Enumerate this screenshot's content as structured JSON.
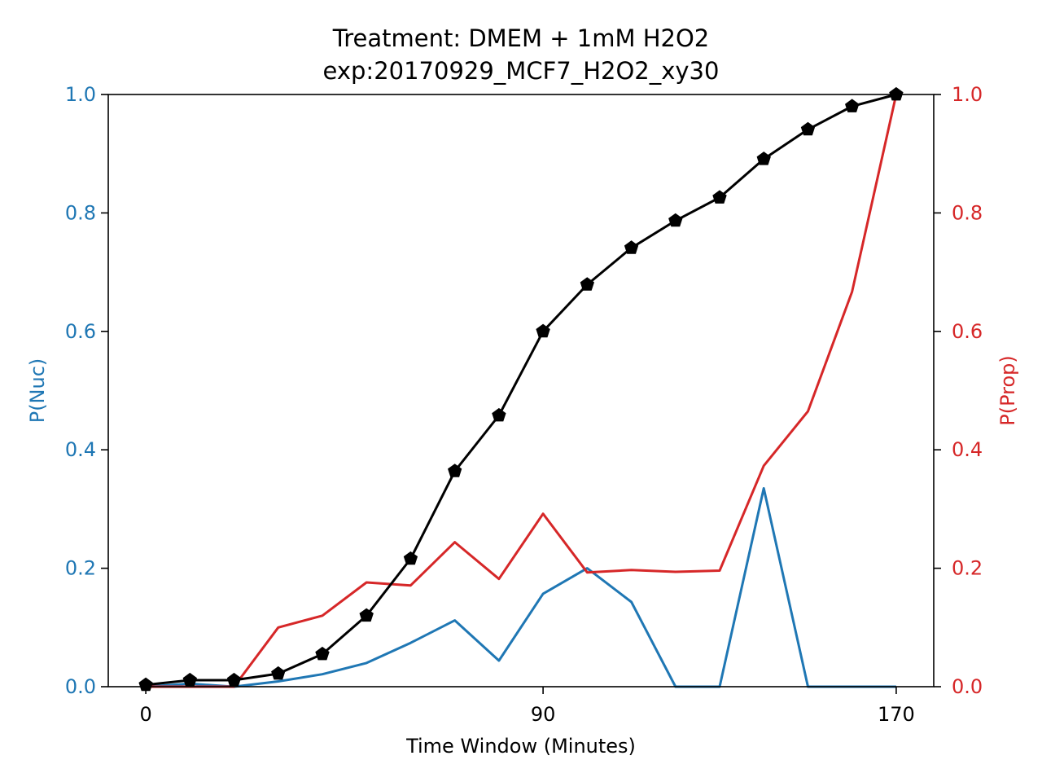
{
  "chart_data": {
    "type": "line",
    "title": "Treatment: DMEM + 1mM H2O2",
    "subtitle": "exp:20170929_MCF7_H2O2_xy30",
    "xlabel": "Time Window (Minutes)",
    "ylabel_left": "P(Nuc)",
    "ylabel_right": "P(Prop)",
    "x_ticks": [
      0,
      90,
      170
    ],
    "y_ticks_left": [
      "0.0",
      "0.2",
      "0.4",
      "0.6",
      "0.8",
      "1.0"
    ],
    "y_ticks_right": [
      "0.0",
      "0.2",
      "0.4",
      "0.6",
      "0.8",
      "1.0"
    ],
    "xlim": [
      -8.5,
      178.5
    ],
    "ylim_left": [
      0,
      1
    ],
    "ylim_right": [
      0,
      1
    ],
    "grid": false,
    "x": [
      0,
      10,
      20,
      30,
      40,
      50,
      60,
      70,
      80,
      90,
      100,
      110,
      120,
      130,
      140,
      150,
      160,
      170
    ],
    "series": [
      {
        "axis": "left",
        "color": "#1f77b4",
        "marker": "none",
        "values": [
          0.0,
          0.005,
          0.0,
          0.009,
          0.021,
          0.04,
          0.074,
          0.112,
          0.044,
          0.157,
          0.2,
          0.143,
          0.0,
          0.0,
          0.335,
          0.0,
          0.0,
          0.0
        ]
      },
      {
        "axis": "right",
        "color": "#d62728",
        "marker": "none",
        "values": [
          0.0,
          0.0,
          0.0,
          0.1,
          0.12,
          0.176,
          0.171,
          0.244,
          0.182,
          0.292,
          0.193,
          0.197,
          0.194,
          0.196,
          0.373,
          0.465,
          0.667,
          1.0
        ]
      },
      {
        "axis": "left",
        "color": "#000000",
        "marker": "pentagon",
        "values": [
          0.003,
          0.011,
          0.011,
          0.022,
          0.055,
          0.12,
          0.216,
          0.364,
          0.458,
          0.6,
          0.679,
          0.741,
          0.787,
          0.826,
          0.891,
          0.941,
          0.98,
          1.0
        ]
      }
    ]
  },
  "colors": {
    "left_axis": "#1f77b4",
    "right_axis": "#d62728",
    "frame": "#000000"
  }
}
